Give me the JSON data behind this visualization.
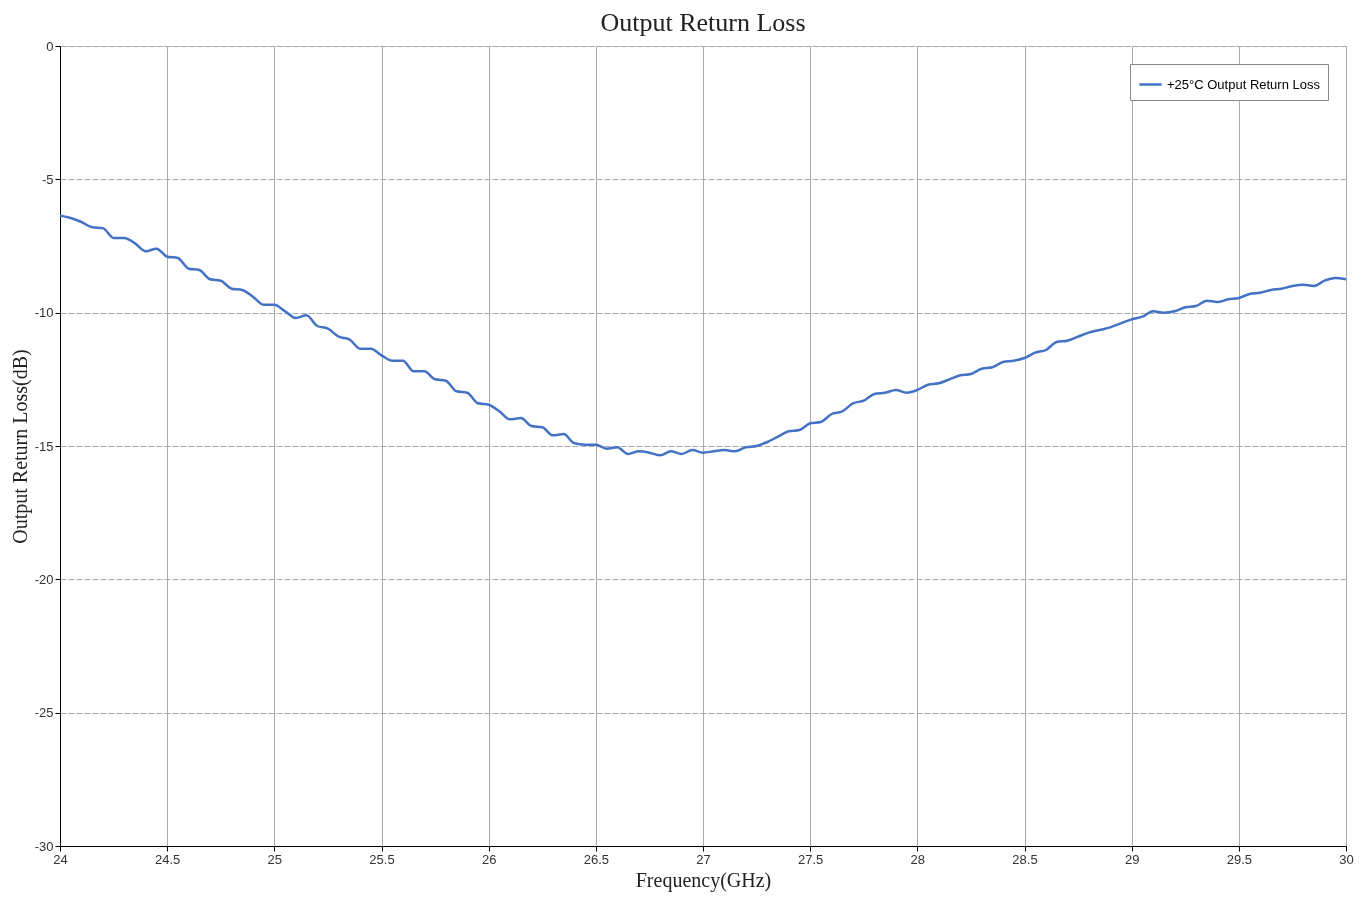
{
  "chart_data": {
    "type": "line",
    "title": "Output Return Loss",
    "xlabel": "Frequency(GHz)",
    "ylabel": "Output Return Loss(dB)",
    "x": [
      24.0,
      24.05,
      24.1,
      24.15,
      24.2,
      24.25,
      24.3,
      24.35,
      24.4,
      24.45,
      24.5,
      24.55,
      24.6,
      24.65,
      24.7,
      24.75,
      24.8,
      24.85,
      24.9,
      24.95,
      25.0,
      25.05,
      25.1,
      25.15,
      25.2,
      25.25,
      25.3,
      25.35,
      25.4,
      25.45,
      25.5,
      25.55,
      25.6,
      25.65,
      25.7,
      25.75,
      25.8,
      25.85,
      25.9,
      25.95,
      26.0,
      26.05,
      26.1,
      26.15,
      26.2,
      26.25,
      26.3,
      26.35,
      26.4,
      26.45,
      26.5,
      26.55,
      26.6,
      26.65,
      26.7,
      26.75,
      26.8,
      26.85,
      26.9,
      26.95,
      27.0,
      27.05,
      27.1,
      27.15,
      27.2,
      27.25,
      27.3,
      27.35,
      27.4,
      27.45,
      27.5,
      27.55,
      27.6,
      27.65,
      27.7,
      27.75,
      27.8,
      27.85,
      27.9,
      27.95,
      28.0,
      28.05,
      28.1,
      28.15,
      28.2,
      28.25,
      28.3,
      28.35,
      28.4,
      28.45,
      28.5,
      28.55,
      28.6,
      28.65,
      28.7,
      28.75,
      28.8,
      28.85,
      28.9,
      28.95,
      29.0,
      29.05,
      29.1,
      29.15,
      29.2,
      29.25,
      29.3,
      29.35,
      29.4,
      29.45,
      29.5,
      29.55,
      29.6,
      29.65,
      29.7,
      29.75,
      29.8,
      29.85,
      29.9,
      29.95,
      30.0
    ],
    "series": [
      {
        "name": "+25°C Output Return Loss",
        "color": "#4472c4",
        "values": [
          -6.36,
          -6.45,
          -6.6,
          -6.8,
          -6.83,
          -7.2,
          -7.2,
          -7.4,
          -7.7,
          -7.6,
          -7.9,
          -7.95,
          -8.35,
          -8.4,
          -8.75,
          -8.8,
          -9.1,
          -9.15,
          -9.4,
          -9.7,
          -9.7,
          -9.95,
          -10.2,
          -10.1,
          -10.5,
          -10.6,
          -10.9,
          -11.0,
          -11.35,
          -11.35,
          -11.6,
          -11.8,
          -11.8,
          -12.2,
          -12.2,
          -12.5,
          -12.55,
          -12.95,
          -13.0,
          -13.4,
          -13.45,
          -13.7,
          -14.0,
          -13.95,
          -14.25,
          -14.3,
          -14.6,
          -14.55,
          -14.9,
          -14.95,
          -14.95,
          -15.1,
          -15.05,
          -15.3,
          -15.2,
          -15.25,
          -15.35,
          -15.2,
          -15.3,
          -15.15,
          -15.25,
          -15.2,
          -15.15,
          -15.2,
          -15.05,
          -15.0,
          -14.85,
          -14.65,
          -14.45,
          -14.4,
          -14.15,
          -14.1,
          -13.8,
          -13.7,
          -13.4,
          -13.3,
          -13.05,
          -13.0,
          -12.9,
          -13.0,
          -12.9,
          -12.7,
          -12.65,
          -12.5,
          -12.35,
          -12.3,
          -12.1,
          -12.05,
          -11.85,
          -11.8,
          -11.7,
          -11.5,
          -11.4,
          -11.1,
          -11.05,
          -10.9,
          -10.75,
          -10.65,
          -10.55,
          -10.4,
          -10.25,
          -10.15,
          -9.95,
          -10.0,
          -9.95,
          -9.8,
          -9.75,
          -9.55,
          -9.6,
          -9.5,
          -9.45,
          -9.3,
          -9.25,
          -9.15,
          -9.1,
          -9.0,
          -8.95,
          -9.0,
          -8.8,
          -8.7,
          -8.75
        ]
      }
    ],
    "xlim": [
      24,
      30
    ],
    "xticks": [
      24,
      24.5,
      25,
      25.5,
      26,
      26.5,
      27,
      27.5,
      28,
      28.5,
      29,
      29.5,
      30
    ],
    "ylim": [
      -30,
      0
    ],
    "yticks": [
      -30,
      -25,
      -20,
      -15,
      -10,
      -5,
      0
    ],
    "grid": true,
    "legend": "top right",
    "marker": "none",
    "line_style": "solid"
  }
}
